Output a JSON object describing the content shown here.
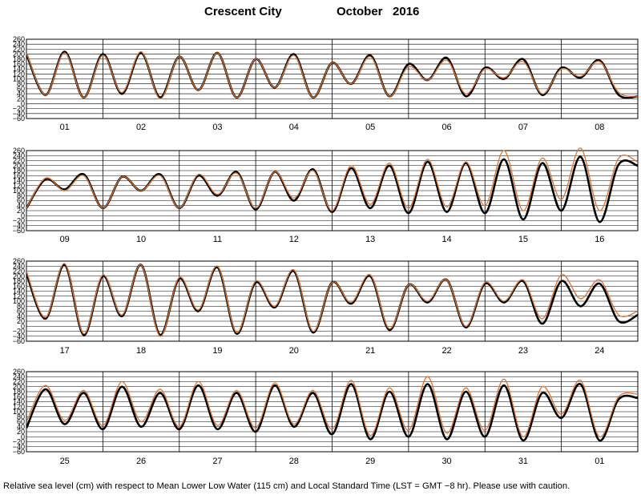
{
  "title": {
    "station": "Crescent City",
    "month": "October   2016"
  },
  "footer": "Relative sea level (cm) with respect to Mean Lower Low Water (115 cm) and Local Standard Time (LST = GMT −8 hr). Please use with caution.",
  "colors": {
    "observed": "#000000",
    "predicted": "#e0702a",
    "grid": "#000000"
  },
  "chart_data": [
    {
      "type": "line",
      "days": [
        "01",
        "02",
        "03",
        "04",
        "05",
        "06",
        "07",
        "08"
      ],
      "y_ticks": [
        "260",
        "240",
        "220",
        "200",
        "180",
        "160",
        "140",
        "120",
        "100",
        "80",
        "60",
        "40",
        "20",
        "0",
        "−20",
        "−40",
        "−60"
      ],
      "ylim": [
        -60,
        260
      ],
      "grid": true,
      "series": [
        {
          "role": "observed",
          "x": [
            0,
            6,
            12,
            18,
            24,
            30,
            36,
            42,
            48,
            54,
            60,
            66,
            72,
            78,
            84,
            90,
            96,
            102,
            108,
            114,
            120,
            126,
            132,
            138,
            144,
            150,
            156,
            162,
            168,
            174,
            180,
            186,
            192
          ],
          "y": [
            200,
            35,
            210,
            25,
            200,
            40,
            205,
            25,
            190,
            55,
            205,
            25,
            180,
            65,
            200,
            25,
            165,
            80,
            195,
            30,
            160,
            95,
            185,
            30,
            145,
            100,
            180,
            35,
            145,
            105,
            175,
            35,
            30
          ]
        },
        {
          "role": "predicted",
          "x": [
            0,
            6,
            12,
            18,
            24,
            30,
            36,
            42,
            48,
            54,
            60,
            66,
            72,
            78,
            84,
            90,
            96,
            102,
            108,
            114,
            120,
            126,
            132,
            138,
            144,
            150,
            156,
            162,
            168,
            174,
            180,
            186,
            192
          ],
          "y": [
            205,
            35,
            205,
            25,
            195,
            45,
            210,
            20,
            190,
            55,
            205,
            25,
            180,
            65,
            195,
            25,
            165,
            80,
            190,
            30,
            150,
            95,
            175,
            40,
            140,
            105,
            170,
            40,
            140,
            110,
            170,
            45,
            30
          ]
        }
      ]
    },
    {
      "type": "line",
      "days": [
        "09",
        "10",
        "11",
        "12",
        "13",
        "14",
        "15",
        "16"
      ],
      "y_ticks": [
        "260",
        "240",
        "220",
        "200",
        "180",
        "160",
        "140",
        "120",
        "100",
        "80",
        "60",
        "40",
        "20",
        "0",
        "−20",
        "−40",
        "−60"
      ],
      "ylim": [
        -60,
        260
      ],
      "grid": true,
      "series": [
        {
          "role": "observed",
          "x": [
            0,
            6,
            12,
            18,
            24,
            30,
            36,
            42,
            48,
            54,
            60,
            66,
            72,
            78,
            84,
            90,
            96,
            102,
            108,
            114,
            120,
            126,
            132,
            138,
            144,
            150,
            156,
            162,
            168,
            174,
            180,
            186,
            192
          ],
          "y": [
            30,
            145,
            105,
            165,
            30,
            155,
            100,
            165,
            30,
            160,
            80,
            175,
            25,
            175,
            60,
            185,
            15,
            190,
            30,
            200,
            10,
            215,
            15,
            210,
            10,
            225,
            -15,
            210,
            20,
            235,
            -25,
            205,
            200
          ]
        },
        {
          "role": "predicted",
          "x": [
            0,
            6,
            12,
            18,
            24,
            30,
            36,
            42,
            48,
            54,
            60,
            66,
            72,
            78,
            84,
            90,
            96,
            102,
            108,
            114,
            120,
            126,
            132,
            138,
            144,
            150,
            156,
            162,
            168,
            174,
            180,
            186,
            192
          ],
          "y": [
            30,
            150,
            100,
            160,
            30,
            155,
            100,
            160,
            30,
            165,
            85,
            170,
            30,
            175,
            70,
            180,
            20,
            200,
            45,
            210,
            30,
            225,
            35,
            215,
            40,
            260,
            20,
            230,
            65,
            270,
            20,
            230,
            215
          ]
        }
      ]
    },
    {
      "type": "line",
      "days": [
        "17",
        "18",
        "19",
        "20",
        "21",
        "22",
        "23",
        "24"
      ],
      "y_ticks": [
        "260",
        "240",
        "220",
        "200",
        "180",
        "160",
        "140",
        "120",
        "100",
        "80",
        "60",
        "40",
        "20",
        "0",
        "−20",
        "−40",
        "−60"
      ],
      "ylim": [
        -60,
        260
      ],
      "grid": true,
      "series": [
        {
          "role": "observed",
          "x": [
            0,
            6,
            12,
            18,
            24,
            30,
            36,
            42,
            48,
            54,
            60,
            66,
            72,
            78,
            84,
            90,
            96,
            102,
            108,
            114,
            120,
            126,
            132,
            138,
            144,
            150,
            156,
            162,
            168,
            174,
            180,
            186,
            192
          ],
          "y": [
            210,
            30,
            245,
            -35,
            200,
            40,
            245,
            -35,
            190,
            60,
            235,
            -30,
            175,
            75,
            220,
            -25,
            175,
            90,
            200,
            -15,
            165,
            95,
            185,
            -5,
            170,
            95,
            180,
            10,
            180,
            80,
            170,
            20,
            45
          ]
        },
        {
          "role": "predicted",
          "x": [
            0,
            6,
            12,
            18,
            24,
            30,
            36,
            42,
            48,
            54,
            60,
            66,
            72,
            78,
            84,
            90,
            96,
            102,
            108,
            114,
            120,
            126,
            132,
            138,
            144,
            150,
            156,
            162,
            168,
            174,
            180,
            186,
            192
          ],
          "y": [
            220,
            35,
            250,
            -30,
            205,
            45,
            245,
            -40,
            195,
            65,
            240,
            -25,
            180,
            80,
            225,
            -20,
            175,
            95,
            205,
            -10,
            165,
            100,
            185,
            0,
            175,
            100,
            185,
            30,
            205,
            110,
            185,
            45,
            60
          ]
        }
      ]
    },
    {
      "type": "line",
      "days": [
        "25",
        "26",
        "27",
        "28",
        "29",
        "30",
        "31",
        "01"
      ],
      "y_ticks": [
        "260",
        "240",
        "220",
        "200",
        "180",
        "160",
        "140",
        "120",
        "100",
        "80",
        "60",
        "40",
        "20",
        "0",
        "−20",
        "−40",
        "−60"
      ],
      "ylim": [
        -60,
        260
      ],
      "grid": true,
      "series": [
        {
          "role": "observed",
          "x": [
            0,
            6,
            12,
            18,
            24,
            30,
            36,
            42,
            48,
            54,
            60,
            66,
            72,
            78,
            84,
            90,
            96,
            102,
            108,
            114,
            120,
            126,
            132,
            138,
            144,
            150,
            156,
            162,
            168,
            174,
            180,
            186,
            192
          ],
          "y": [
            35,
            190,
            50,
            175,
            30,
            200,
            40,
            175,
            30,
            205,
            30,
            175,
            20,
            205,
            40,
            175,
            10,
            210,
            -10,
            180,
            0,
            210,
            -10,
            180,
            0,
            205,
            -15,
            175,
            75,
            210,
            -15,
            150,
            155
          ]
        },
        {
          "role": "predicted",
          "x": [
            0,
            6,
            12,
            18,
            24,
            30,
            36,
            42,
            48,
            54,
            60,
            66,
            72,
            78,
            84,
            90,
            96,
            102,
            108,
            114,
            120,
            126,
            132,
            138,
            144,
            150,
            156,
            162,
            168,
            174,
            180,
            186,
            192
          ],
          "y": [
            60,
            205,
            65,
            185,
            45,
            220,
            60,
            190,
            40,
            220,
            45,
            185,
            35,
            215,
            50,
            185,
            30,
            225,
            5,
            195,
            25,
            240,
            15,
            195,
            25,
            230,
            0,
            200,
            90,
            225,
            0,
            160,
            170
          ]
        }
      ]
    }
  ]
}
